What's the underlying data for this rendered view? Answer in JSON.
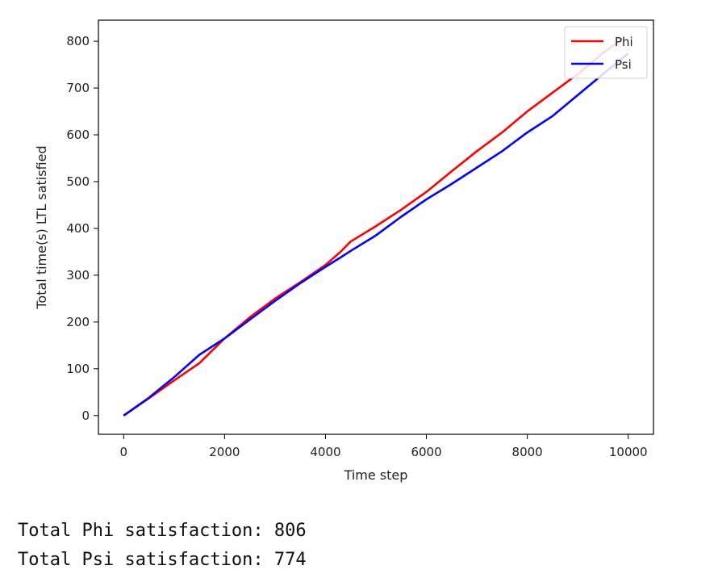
{
  "chart_data": {
    "type": "line",
    "title": "",
    "xlabel": "Time step",
    "ylabel": "Total time(s) LTL satisfied",
    "xlim": [
      -500,
      10500
    ],
    "ylim": [
      -40,
      845
    ],
    "xticks": [
      0,
      2000,
      4000,
      6000,
      8000,
      10000
    ],
    "yticks": [
      0,
      100,
      200,
      300,
      400,
      500,
      600,
      700,
      800
    ],
    "grid": false,
    "legend_position": "top-right",
    "series": [
      {
        "name": "Phi",
        "color": "#ff0000",
        "x": [
          0,
          500,
          1000,
          1500,
          2000,
          2500,
          3000,
          3500,
          4000,
          4300,
          4500,
          5000,
          5500,
          6000,
          6500,
          7000,
          7500,
          8000,
          8500,
          9000,
          9500,
          9900
        ],
        "y": [
          0,
          37,
          75,
          112,
          165,
          210,
          250,
          285,
          322,
          350,
          372,
          405,
          440,
          478,
          522,
          565,
          605,
          650,
          690,
          730,
          775,
          806
        ]
      },
      {
        "name": "Psi",
        "color": "#0000ff",
        "x": [
          0,
          500,
          1000,
          1500,
          2000,
          2500,
          3000,
          3500,
          4000,
          4300,
          4500,
          5000,
          5500,
          6000,
          6500,
          7000,
          7500,
          8000,
          8500,
          9000,
          9500,
          10000
        ],
        "y": [
          0,
          38,
          82,
          130,
          165,
          205,
          245,
          283,
          318,
          338,
          352,
          385,
          425,
          462,
          495,
          530,
          565,
          605,
          640,
          685,
          730,
          774
        ]
      }
    ]
  },
  "output": {
    "line1": "Total Phi satisfaction: 806",
    "line2": "Total Psi satisfaction: 774"
  }
}
